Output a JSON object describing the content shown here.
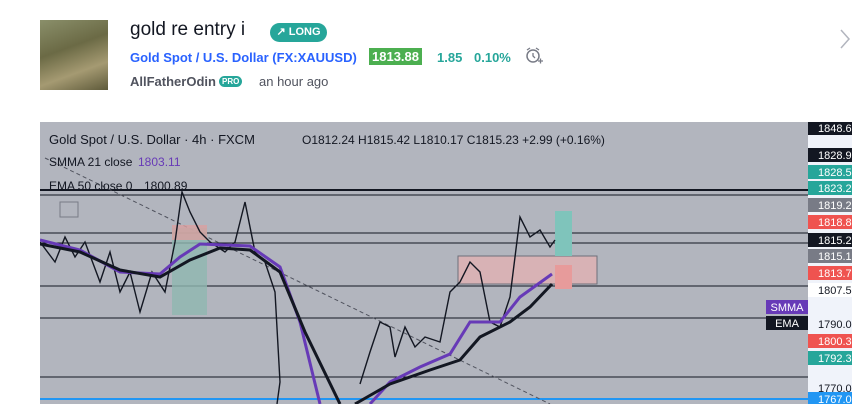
{
  "header": {
    "title": "gold re entry i",
    "badge": "LONG",
    "symbol_name": "Gold Spot / U.S. Dollar",
    "symbol_code": "(FX:XAUUSD)",
    "price": "1813.88",
    "change": "1.85",
    "change_pct": "0.10%",
    "author": "AllFatherOdin",
    "author_badge": "PRO",
    "time": "an hour ago"
  },
  "chart": {
    "title": "Gold Spot / U.S. Dollar · 4h · FXCM",
    "ohlc": "O1812.24 H1815.42 L1810.17 C1815.23 +2.99 (+0.16%)",
    "indicators": [
      {
        "name": "SMMA 21 close",
        "value": "1803.11"
      },
      {
        "name": "EMA 50 close 0",
        "value": "1800.89"
      }
    ],
    "price_labels": [
      "1848.6",
      "1828.9",
      "1828.5",
      "1823.2",
      "1819.2",
      "1818.8",
      "1815.2",
      "1815.1",
      "1813.7",
      "1807.5",
      "1790.0",
      "1800.3",
      "1792.3",
      "1770.0",
      "1767.0"
    ],
    "tags": [
      "SMMA",
      "EMA"
    ]
  }
}
